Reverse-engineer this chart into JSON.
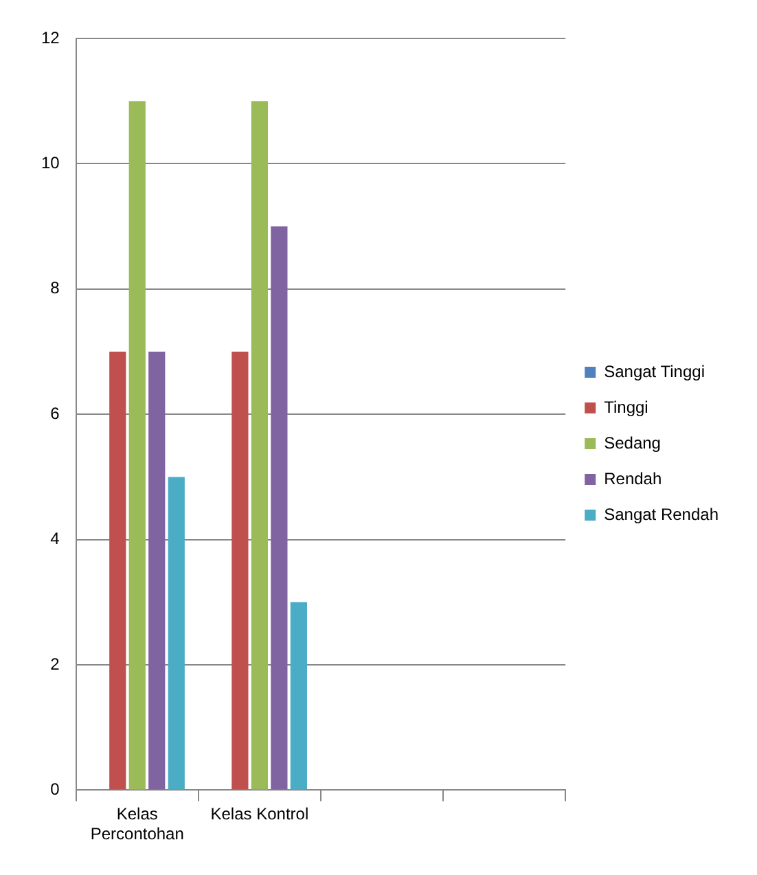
{
  "chart_data": {
    "type": "bar",
    "categories": [
      "Kelas Percontohan",
      "Kelas Kontrol",
      null,
      null
    ],
    "series": [
      {
        "name": "Sangat Tinggi",
        "color": "#4f81bd",
        "values": [
          0,
          0,
          null,
          null
        ]
      },
      {
        "name": "Tinggi",
        "color": "#c0504d",
        "values": [
          7,
          7,
          null,
          null
        ]
      },
      {
        "name": "Sedang",
        "color": "#9bbb59",
        "values": [
          11,
          11,
          null,
          null
        ]
      },
      {
        "name": "Rendah",
        "color": "#8064a2",
        "values": [
          7,
          9,
          null,
          null
        ]
      },
      {
        "name": "Sangat Rendah",
        "color": "#4bacc6",
        "values": [
          5,
          3,
          null,
          null
        ]
      }
    ],
    "ylim": [
      0,
      12
    ],
    "yticks": [
      0,
      2,
      4,
      6,
      8,
      10,
      12
    ],
    "grid": "y",
    "legend": "right"
  }
}
